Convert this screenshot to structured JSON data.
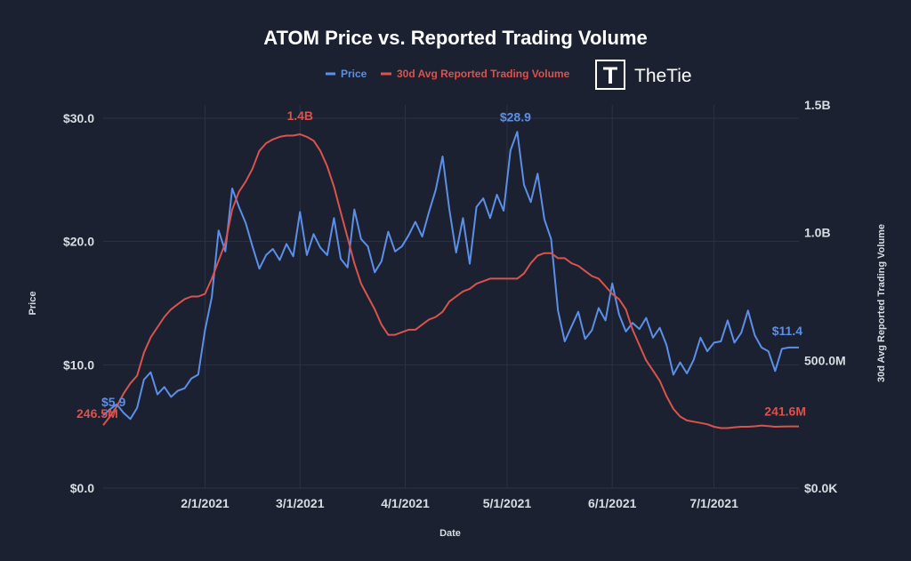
{
  "chart_data": {
    "type": "line",
    "title": "ATOM Price vs. Reported Trading Volume",
    "xlabel": "Date",
    "ylabel": "Price",
    "y2label": "30d Avg Reported Trading Volume",
    "legend_position": "top-center",
    "grid": true,
    "x_ticks": [
      "2/1/2021",
      "3/1/2021",
      "4/1/2021",
      "5/1/2021",
      "6/1/2021",
      "7/1/2021"
    ],
    "y_ticks": [
      "$0.0",
      "$10.0",
      "$20.0",
      "$30.0"
    ],
    "y2_ticks": [
      "$0.0K",
      "500.0M",
      "1.0B",
      "1.5B"
    ],
    "ylim": [
      0,
      30
    ],
    "y2lim": [
      0,
      1500000000
    ],
    "xlim": [
      "2021-01-02",
      "2021-07-26"
    ],
    "series": [
      {
        "name": "Price",
        "axis": "left",
        "color": "#5b8fe8",
        "x": [
          "2021-01-02",
          "2021-01-04",
          "2021-01-06",
          "2021-01-08",
          "2021-01-10",
          "2021-01-12",
          "2021-01-14",
          "2021-01-16",
          "2021-01-18",
          "2021-01-20",
          "2021-01-22",
          "2021-01-24",
          "2021-01-26",
          "2021-01-28",
          "2021-01-30",
          "2021-02-01",
          "2021-02-03",
          "2021-02-05",
          "2021-02-07",
          "2021-02-09",
          "2021-02-11",
          "2021-02-13",
          "2021-02-15",
          "2021-02-17",
          "2021-02-19",
          "2021-02-21",
          "2021-02-23",
          "2021-02-25",
          "2021-02-27",
          "2021-03-01",
          "2021-03-03",
          "2021-03-05",
          "2021-03-07",
          "2021-03-09",
          "2021-03-11",
          "2021-03-13",
          "2021-03-15",
          "2021-03-17",
          "2021-03-19",
          "2021-03-21",
          "2021-03-23",
          "2021-03-25",
          "2021-03-27",
          "2021-03-29",
          "2021-03-31",
          "2021-04-02",
          "2021-04-04",
          "2021-04-06",
          "2021-04-08",
          "2021-04-10",
          "2021-04-12",
          "2021-04-14",
          "2021-04-16",
          "2021-04-18",
          "2021-04-20",
          "2021-04-22",
          "2021-04-24",
          "2021-04-26",
          "2021-04-28",
          "2021-04-30",
          "2021-05-02",
          "2021-05-04",
          "2021-05-06",
          "2021-05-08",
          "2021-05-10",
          "2021-05-12",
          "2021-05-14",
          "2021-05-16",
          "2021-05-18",
          "2021-05-20",
          "2021-05-22",
          "2021-05-24",
          "2021-05-26",
          "2021-05-28",
          "2021-05-30",
          "2021-06-01",
          "2021-06-03",
          "2021-06-05",
          "2021-06-07",
          "2021-06-09",
          "2021-06-11",
          "2021-06-13",
          "2021-06-15",
          "2021-06-17",
          "2021-06-19",
          "2021-06-21",
          "2021-06-23",
          "2021-06-25",
          "2021-06-27",
          "2021-06-29",
          "2021-07-01",
          "2021-07-03",
          "2021-07-05",
          "2021-07-07",
          "2021-07-09",
          "2021-07-11",
          "2021-07-13",
          "2021-07-15",
          "2021-07-17",
          "2021-07-19",
          "2021-07-21",
          "2021-07-23",
          "2021-07-26"
        ],
        "values": [
          5.9,
          6.4,
          6.8,
          6.1,
          5.6,
          6.5,
          8.8,
          9.4,
          7.6,
          8.2,
          7.4,
          7.9,
          8.1,
          8.9,
          9.2,
          12.8,
          15.5,
          20.9,
          19.2,
          24.3,
          22.8,
          21.5,
          19.6,
          17.8,
          18.9,
          19.4,
          18.5,
          19.8,
          18.8,
          22.4,
          18.9,
          20.6,
          19.5,
          18.9,
          21.9,
          18.6,
          17.9,
          22.6,
          20.2,
          19.6,
          17.5,
          18.4,
          20.8,
          19.2,
          19.6,
          20.5,
          21.6,
          20.4,
          22.4,
          24.2,
          26.9,
          22.6,
          19.1,
          21.9,
          18.2,
          22.8,
          23.5,
          21.9,
          23.8,
          22.5,
          27.4,
          28.9,
          24.6,
          23.2,
          25.5,
          21.8,
          20.2,
          14.4,
          11.9,
          13.1,
          14.3,
          12.1,
          12.8,
          14.6,
          13.6,
          16.6,
          14.1,
          12.7,
          13.4,
          12.9,
          13.8,
          12.2,
          13.0,
          11.6,
          9.2,
          10.2,
          9.3,
          10.4,
          12.2,
          11.1,
          11.8,
          11.9,
          13.6,
          11.8,
          12.6,
          14.4,
          12.4,
          11.4,
          11.1,
          9.5,
          11.3,
          11.4,
          11.4
        ]
      },
      {
        "name": "30d Avg Reported Trading Volume",
        "axis": "right",
        "color": "#d9534f",
        "x": [
          "2021-01-02",
          "2021-01-04",
          "2021-01-06",
          "2021-01-08",
          "2021-01-10",
          "2021-01-12",
          "2021-01-14",
          "2021-01-16",
          "2021-01-18",
          "2021-01-20",
          "2021-01-22",
          "2021-01-24",
          "2021-01-26",
          "2021-01-28",
          "2021-01-30",
          "2021-02-01",
          "2021-02-03",
          "2021-02-05",
          "2021-02-07",
          "2021-02-09",
          "2021-02-11",
          "2021-02-13",
          "2021-02-15",
          "2021-02-17",
          "2021-02-19",
          "2021-02-21",
          "2021-02-23",
          "2021-02-25",
          "2021-02-27",
          "2021-03-01",
          "2021-03-03",
          "2021-03-05",
          "2021-03-07",
          "2021-03-09",
          "2021-03-11",
          "2021-03-13",
          "2021-03-15",
          "2021-03-17",
          "2021-03-19",
          "2021-03-21",
          "2021-03-23",
          "2021-03-25",
          "2021-03-27",
          "2021-03-29",
          "2021-03-31",
          "2021-04-02",
          "2021-04-04",
          "2021-04-06",
          "2021-04-08",
          "2021-04-10",
          "2021-04-12",
          "2021-04-14",
          "2021-04-16",
          "2021-04-18",
          "2021-04-20",
          "2021-04-22",
          "2021-04-24",
          "2021-04-26",
          "2021-04-28",
          "2021-04-30",
          "2021-05-02",
          "2021-05-04",
          "2021-05-06",
          "2021-05-08",
          "2021-05-10",
          "2021-05-12",
          "2021-05-14",
          "2021-05-16",
          "2021-05-18",
          "2021-05-20",
          "2021-05-22",
          "2021-05-24",
          "2021-05-26",
          "2021-05-28",
          "2021-05-30",
          "2021-06-01",
          "2021-06-03",
          "2021-06-05",
          "2021-06-07",
          "2021-06-09",
          "2021-06-11",
          "2021-06-13",
          "2021-06-15",
          "2021-06-17",
          "2021-06-19",
          "2021-06-21",
          "2021-06-23",
          "2021-06-25",
          "2021-06-27",
          "2021-06-29",
          "2021-07-01",
          "2021-07-03",
          "2021-07-05",
          "2021-07-07",
          "2021-07-09",
          "2021-07-11",
          "2021-07-13",
          "2021-07-15",
          "2021-07-17",
          "2021-07-19",
          "2021-07-21",
          "2021-07-23",
          "2021-07-26"
        ],
        "values": [
          246500000.0,
          280000000.0,
          320000000.0,
          370000000.0,
          410000000.0,
          440000000.0,
          530000000.0,
          590000000.0,
          630000000.0,
          670000000.0,
          700000000.0,
          720000000.0,
          740000000.0,
          750000000.0,
          750000000.0,
          760000000.0,
          820000000.0,
          890000000.0,
          960000000.0,
          1090000000.0,
          1160000000.0,
          1200000000.0,
          1250000000.0,
          1320000000.0,
          1350000000.0,
          1365000000.0,
          1375000000.0,
          1380000000.0,
          1380000000.0,
          1385000000.0,
          1375000000.0,
          1360000000.0,
          1320000000.0,
          1260000000.0,
          1180000000.0,
          1080000000.0,
          980000000.0,
          880000000.0,
          800000000.0,
          750000000.0,
          700000000.0,
          640000000.0,
          600000000.0,
          600000000.0,
          610000000.0,
          620000000.0,
          620000000.0,
          640000000.0,
          660000000.0,
          670000000.0,
          690000000.0,
          730000000.0,
          750000000.0,
          770000000.0,
          780000000.0,
          800000000.0,
          810000000.0,
          820000000.0,
          820000000.0,
          820000000.0,
          820000000.0,
          820000000.0,
          840000000.0,
          880000000.0,
          910000000.0,
          920000000.0,
          920000000.0,
          900000000.0,
          900000000.0,
          880000000.0,
          870000000.0,
          850000000.0,
          830000000.0,
          820000000.0,
          790000000.0,
          760000000.0,
          740000000.0,
          700000000.0,
          620000000.0,
          560000000.0,
          500000000.0,
          460000000.0,
          420000000.0,
          360000000.0,
          310000000.0,
          280000000.0,
          265000000.0,
          260000000.0,
          255000000.0,
          250000000.0,
          240000000.0,
          235000000.0,
          235000000.0,
          238000000.0,
          240000000.0,
          240000000.0,
          242000000.0,
          245000000.0,
          243000000.0,
          240000000.0,
          241000000.0,
          241600000.0,
          241600000.0
        ]
      }
    ],
    "annotations": [
      {
        "text": "$5.9",
        "series": "Price"
      },
      {
        "text": "$28.9",
        "series": "Price"
      },
      {
        "text": "$11.4",
        "series": "Price"
      },
      {
        "text": "246.5M",
        "series": "30d Avg Reported Trading Volume"
      },
      {
        "text": "1.4B",
        "series": "30d Avg Reported Trading Volume"
      },
      {
        "text": "241.6M",
        "series": "30d Avg Reported Trading Volume"
      }
    ]
  },
  "brand": {
    "name": "TheTie",
    "logo_letter": "T"
  }
}
